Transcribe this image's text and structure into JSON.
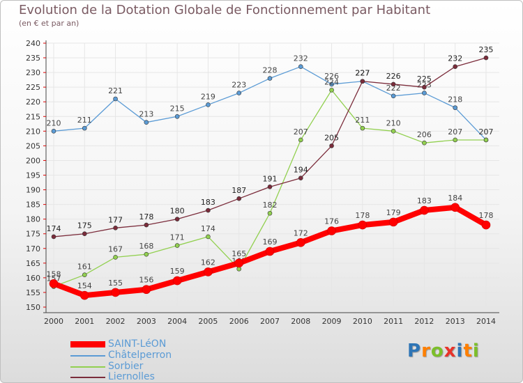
{
  "title": "Evolution de la Dotation Globale de Fonctionnement par Habitant",
  "subtitle": "(en € et par an)",
  "logo": "Proxiti",
  "chart_data": {
    "type": "line",
    "x": [
      2000,
      2001,
      2002,
      2003,
      2004,
      2005,
      2006,
      2007,
      2008,
      2009,
      2010,
      2011,
      2012,
      2013,
      2014
    ],
    "ylim": [
      150,
      240
    ],
    "yticks": [
      150,
      155,
      160,
      165,
      170,
      175,
      180,
      185,
      190,
      195,
      200,
      205,
      210,
      215,
      220,
      225,
      230,
      235,
      240
    ],
    "grid": true,
    "legend_position": "bottom-left",
    "series": [
      {
        "name": "SAINT-LéON",
        "color": "#ff0000",
        "values": [
          158,
          154,
          155,
          156,
          159,
          162,
          165,
          169,
          172,
          176,
          178,
          179,
          183,
          184,
          178
        ]
      },
      {
        "name": "Châtelperron",
        "color": "#5b9bd5",
        "values": [
          210,
          211,
          221,
          213,
          215,
          219,
          223,
          228,
          232,
          226,
          227,
          222,
          223,
          218,
          207
        ]
      },
      {
        "name": "Sorbier",
        "color": "#92d050",
        "values": [
          157,
          161,
          167,
          168,
          171,
          174,
          163,
          182,
          207,
          224,
          211,
          210,
          206,
          207,
          207
        ]
      },
      {
        "name": "Liernolles",
        "color": "#7b2c3b",
        "values": [
          174,
          175,
          177,
          178,
          180,
          183,
          187,
          191,
          194,
          205,
          227,
          226,
          225,
          232,
          235
        ]
      }
    ]
  }
}
